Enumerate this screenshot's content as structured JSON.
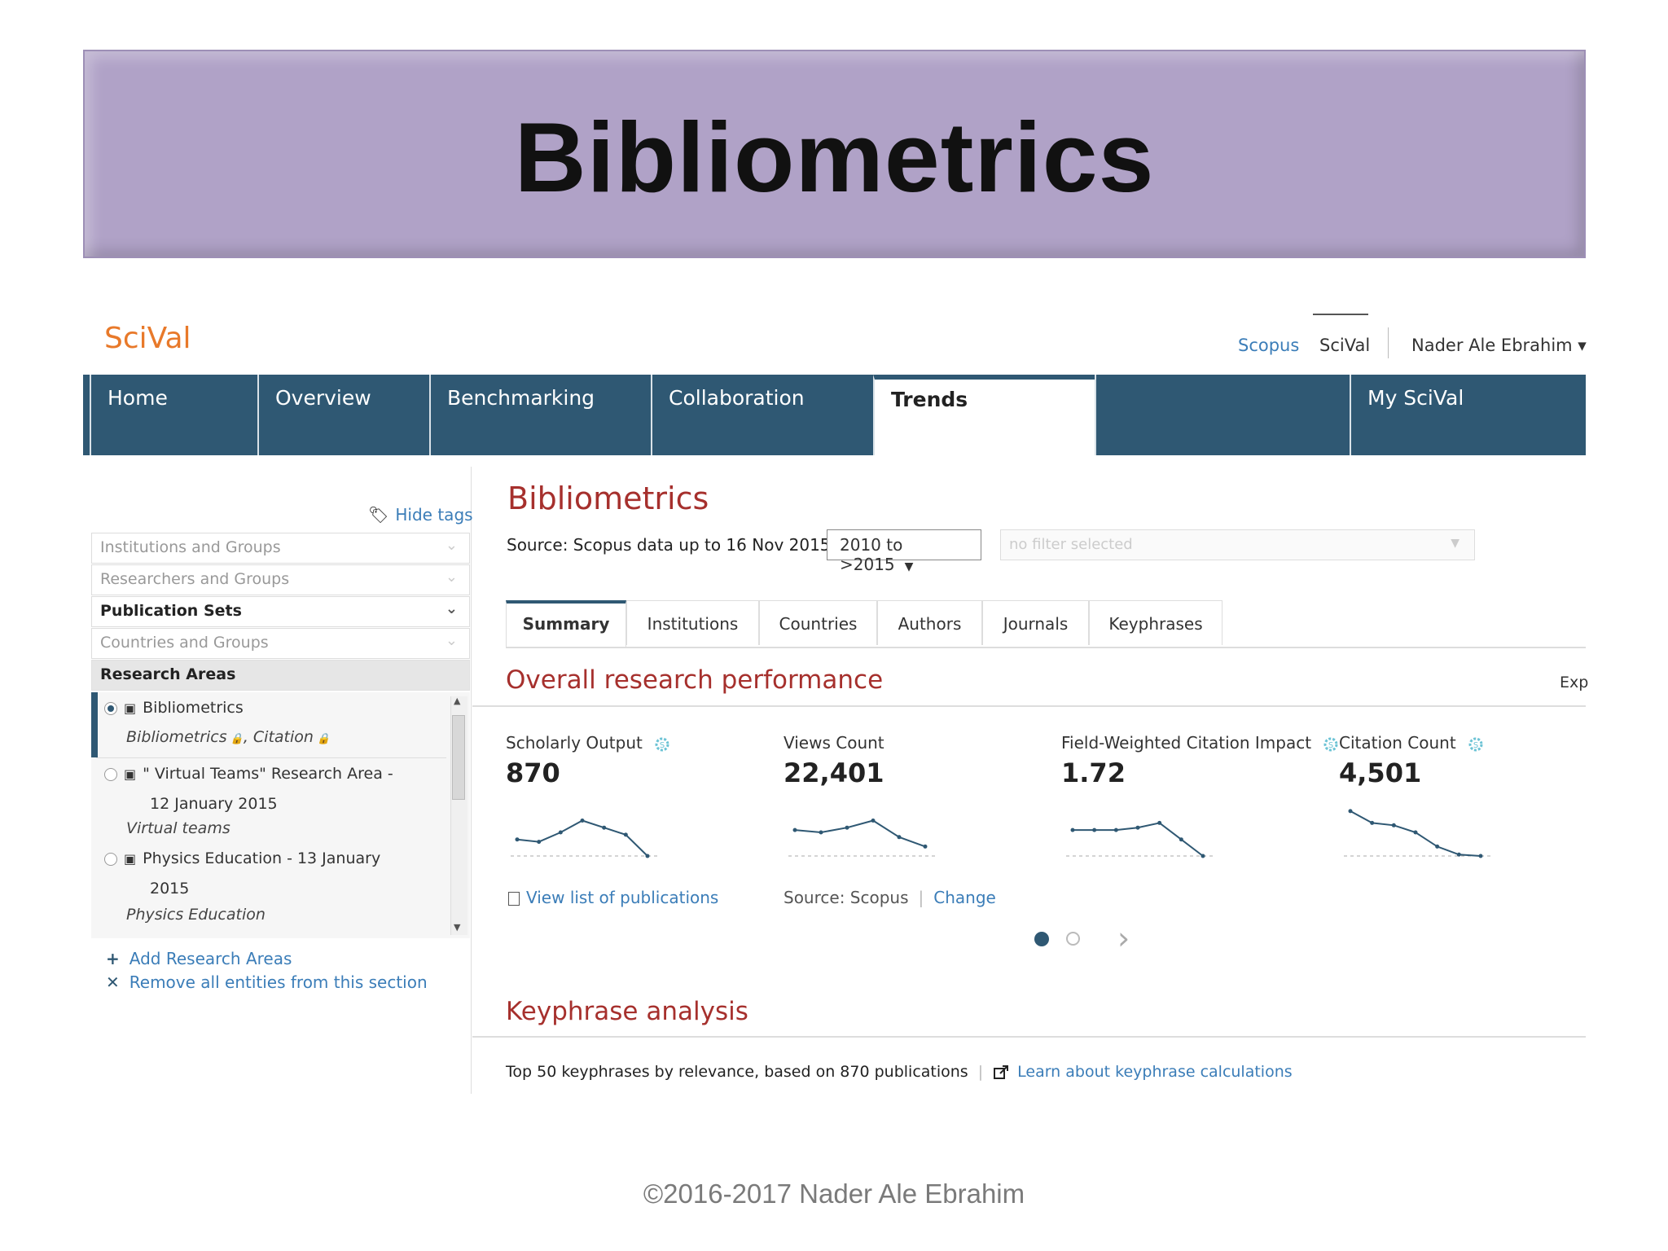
{
  "slide": {
    "title": "Bibliometrics",
    "footer": "©2016-2017  Nader Ale Ebrahim",
    "banner_color": "#b0a2c7"
  },
  "app": {
    "logo": "SciVal",
    "logo_color": "#e8792a",
    "top_links": {
      "scopus": "Scopus",
      "scival": "SciVal",
      "user": "Nader Ale Ebrahim ▾"
    },
    "nav_color": "#2f5873",
    "nav": [
      "Home",
      "Overview",
      "Benchmarking",
      "Collaboration",
      "Trends",
      "My SciVal"
    ],
    "nav_active": "Trends"
  },
  "sidebar": {
    "hide_tags": "Hide tags",
    "sections": [
      "Institutions and Groups",
      "Researchers and Groups",
      "Publication Sets",
      "Countries and Groups",
      "Research Areas"
    ],
    "research_areas": [
      {
        "name": "Bibliometrics",
        "tags_a": "Bibliometrics",
        "tags_b": ", Citation",
        "selected": true
      },
      {
        "name_line1": "\" Virtual Teams\" Research Area -",
        "name_line2": "12 January 2015",
        "tag": "Virtual teams"
      },
      {
        "name_line1": "Physics Education - 13 January",
        "name_line2": "2015",
        "tag": "Physics Education"
      }
    ],
    "add_label": "Add Research Areas",
    "remove_label": "Remove all entities from this section"
  },
  "main": {
    "title": "Bibliometrics",
    "source": "Source: Scopus data up to 16 Nov 2015",
    "year_range": "2010 to >2015",
    "filter_placeholder": "no filter selected",
    "tabs": [
      "Summary",
      "Institutions",
      "Countries",
      "Authors",
      "Journals",
      "Keyphrases"
    ],
    "active_tab": "Summary",
    "overall_title": "Overall research performance",
    "export_label": "Exp",
    "metrics": [
      {
        "label": "Scholarly Output",
        "value": "870",
        "trend": [
          0.35,
          0.3,
          0.5,
          0.75,
          0.6,
          0.45,
          0.0
        ],
        "has_icon": true
      },
      {
        "label": "Views Count",
        "value": "22,401",
        "trend": [
          0.55,
          0.5,
          0.6,
          0.75,
          0.4,
          0.2
        ],
        "has_icon": false
      },
      {
        "label": "Field-Weighted Citation Impact",
        "value": "1.72",
        "trend": [
          0.55,
          0.55,
          0.55,
          0.6,
          0.7,
          0.35,
          0.0
        ],
        "has_icon": true
      },
      {
        "label": "Citation Count",
        "value": "4,501",
        "trend": [
          0.95,
          0.7,
          0.65,
          0.5,
          0.2,
          0.03,
          0.0
        ],
        "has_icon": true
      }
    ],
    "view_list": "View list of publications",
    "source_label": "Source: Scopus",
    "change_label": "Change",
    "keyphrase_title": "Keyphrase analysis",
    "keyphrase_text": "Top 50 keyphrases by relevance, based on 870 publications",
    "keyphrase_link": "Learn about keyphrase calculations"
  }
}
